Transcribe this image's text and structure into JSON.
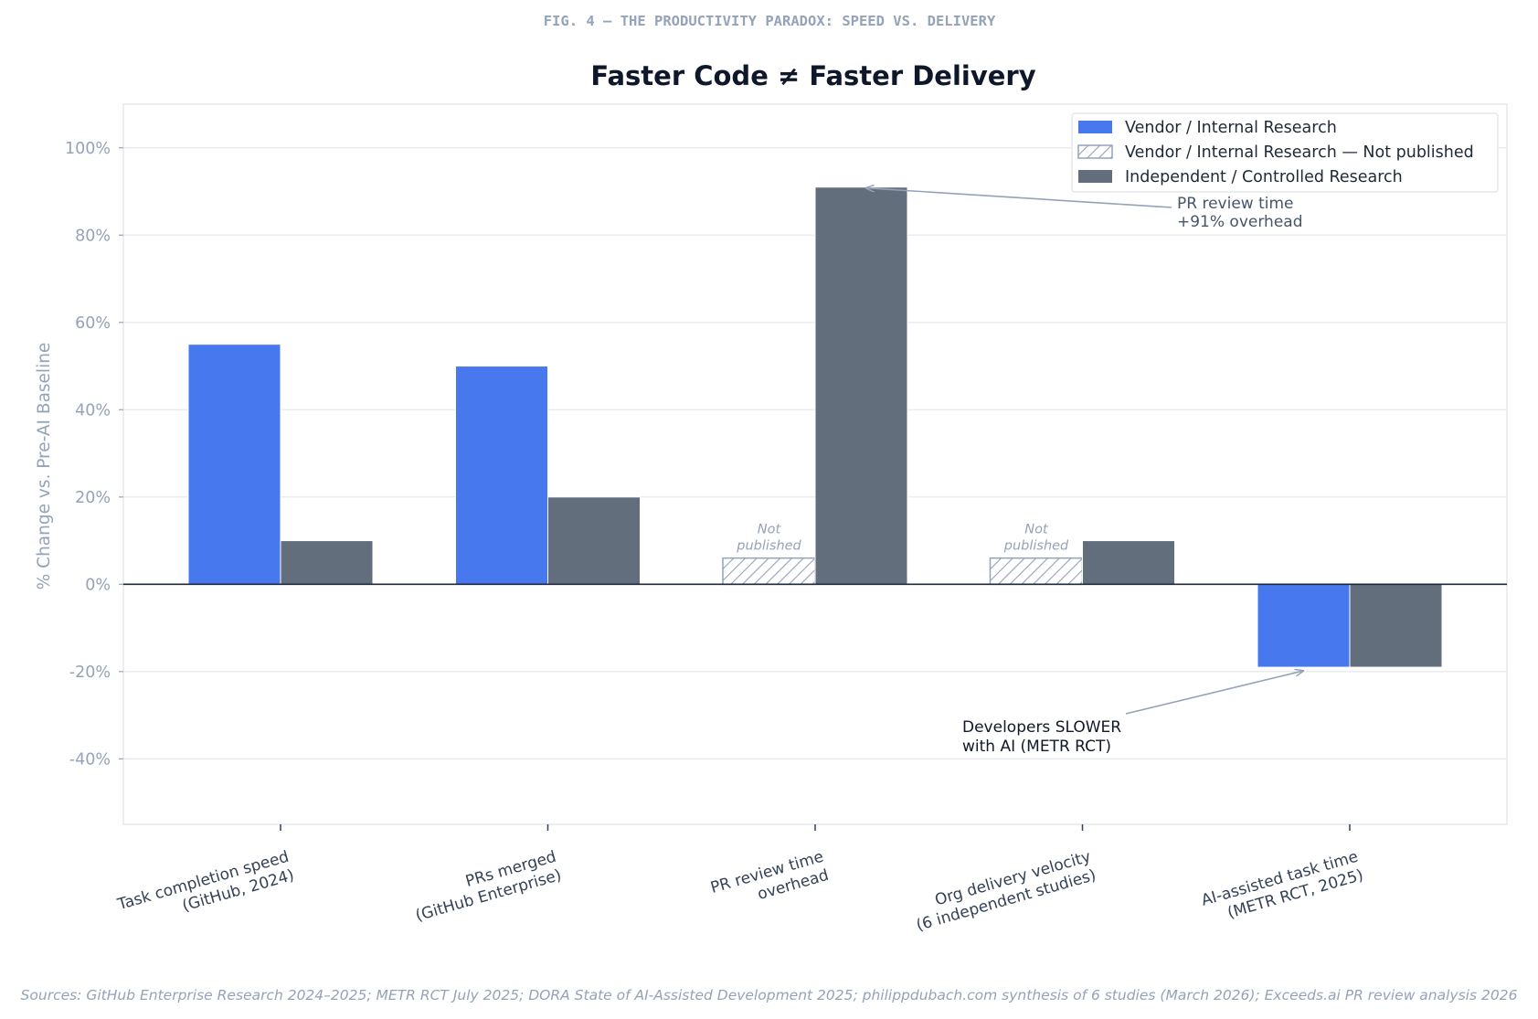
{
  "figure_label": "FIG. 4 — THE PRODUCTIVITY PARADOX: SPEED VS. DELIVERY",
  "source_note": "Sources: GitHub Enterprise Research 2024–2025; METR RCT July 2025; DORA State of AI-Assisted Development 2025; philippdubach.com synthesis of 6 studies (March 2026); Exceeds.ai PR review analysis 2026",
  "colors": {
    "vendor": "#4878ee",
    "independent": "#636e7d",
    "hatch": "#94a3b8",
    "grid": "#e5e7eb",
    "axis_text": "#94a3b8",
    "tick_label": "#334155",
    "title": "#0f172a",
    "zero_line": "#1e293b",
    "annotation_arrow": "#94a3b8"
  },
  "chart_data": {
    "type": "bar",
    "title": "Faster Code ≠ Faster Delivery",
    "ylabel": "% Change vs. Pre-AI Baseline",
    "xlabel": "",
    "ylim": [
      -55,
      110
    ],
    "yticks": [
      -40,
      -20,
      0,
      20,
      40,
      60,
      80,
      100
    ],
    "ytick_labels": [
      "-40%",
      "-20%",
      "0%",
      "20%",
      "40%",
      "60%",
      "80%",
      "100%"
    ],
    "grid": true,
    "legend_position": "top-right",
    "categories": [
      [
        "Task completion speed",
        "(GitHub, 2024)"
      ],
      [
        "PRs merged",
        "(GitHub Enterprise)"
      ],
      [
        "PR review time",
        "overhead"
      ],
      [
        "Org delivery velocity",
        "(6 independent studies)"
      ],
      [
        "AI-assisted task time",
        "(METR RCT, 2025)"
      ]
    ],
    "legend": [
      {
        "label": "Vendor / Internal Research",
        "style": "solid-vendor"
      },
      {
        "label": "Vendor / Internal Research — Not published",
        "style": "hatched"
      },
      {
        "label": "Independent / Controlled Research",
        "style": "solid-independent"
      }
    ],
    "series": [
      {
        "name": "Vendor / Internal Research",
        "values": [
          55,
          50,
          null,
          null,
          -19
        ],
        "not_published_placeholder": [
          null,
          null,
          6,
          6,
          null
        ]
      },
      {
        "name": "Independent / Controlled Research",
        "values": [
          10,
          20,
          91,
          10,
          -19
        ]
      }
    ],
    "placeholder_label": [
      "Not",
      "published"
    ],
    "annotations": [
      {
        "text": [
          "PR review time",
          "+91% overhead"
        ],
        "points_to_category": 2,
        "points_to_value": 91
      },
      {
        "text": [
          "Developers SLOWER",
          "with AI (METR RCT)"
        ],
        "points_to_category": 4,
        "points_to_value": -19
      }
    ]
  }
}
